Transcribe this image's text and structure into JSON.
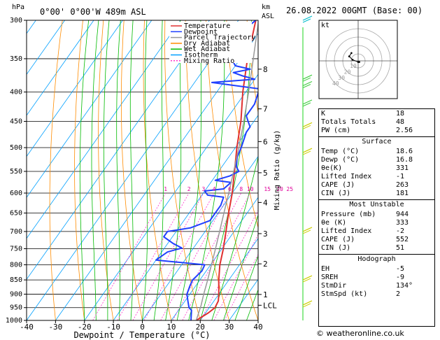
{
  "header": {
    "location": "0°00'  0°00'W  489m  ASL",
    "hpa_unit": "hPa",
    "km_unit": "km",
    "asl_unit": "ASL",
    "datetime": "26.08.2022  00GMT  (Base: 00)"
  },
  "axes": {
    "xlabel": "Dewpoint / Temperature (°C)",
    "mixing_label": "Mixing Ratio (g/kg)",
    "x_ticks": [
      -40,
      -30,
      -20,
      -10,
      0,
      10,
      20,
      30,
      40
    ],
    "p_ticks": [
      300,
      350,
      400,
      450,
      500,
      550,
      600,
      650,
      700,
      750,
      800,
      850,
      900,
      950,
      1000
    ],
    "km_ticks": [
      {
        "label": "8",
        "p": 365
      },
      {
        "label": "7",
        "p": 428
      },
      {
        "label": "6",
        "p": 488
      },
      {
        "label": "5",
        "p": 553
      },
      {
        "label": "4",
        "p": 623
      },
      {
        "label": "3",
        "p": 706
      },
      {
        "label": "2",
        "p": 797
      },
      {
        "label": "1",
        "p": 901
      },
      {
        "label": "LCL",
        "p": 941
      }
    ],
    "mixing_ratio_labels": [
      "1",
      "2",
      "3",
      "4",
      "6",
      "8",
      "10",
      "15",
      "20",
      "25"
    ]
  },
  "legend": [
    {
      "name": "Temperature",
      "color": "#e03030"
    },
    {
      "name": "Dewpoint",
      "color": "#2040ff"
    },
    {
      "name": "Parcel Trajectory",
      "color": "#999999"
    },
    {
      "name": "Dry Adiabat",
      "color": "#ff8c00"
    },
    {
      "name": "Wet Adiabat",
      "color": "#00bb00"
    },
    {
      "name": "Isotherm",
      "color": "#00a0ff"
    },
    {
      "name": "Mixing Ratio",
      "color": "#ff33cc"
    }
  ],
  "chart_data": {
    "type": "line",
    "series": [
      {
        "name": "Temperature",
        "color": "#e03030",
        "points": [
          [
            1000,
            18.6
          ],
          [
            970,
            21
          ],
          [
            950,
            22
          ],
          [
            925,
            21.5
          ],
          [
            900,
            20
          ],
          [
            850,
            16.5
          ],
          [
            800,
            13.2
          ],
          [
            750,
            10.5
          ],
          [
            700,
            7.2
          ],
          [
            650,
            3.6
          ],
          [
            600,
            0
          ],
          [
            550,
            -4.5
          ],
          [
            500,
            -9.5
          ],
          [
            450,
            -14.5
          ],
          [
            400,
            -21
          ],
          [
            350,
            -27.5
          ],
          [
            300,
            -34
          ]
        ]
      },
      {
        "name": "Dewpoint",
        "color": "#2040ff",
        "points": [
          [
            1000,
            16.8
          ],
          [
            960,
            14.5
          ],
          [
            950,
            13
          ],
          [
            925,
            11
          ],
          [
            900,
            9
          ],
          [
            870,
            8
          ],
          [
            850,
            7.5
          ],
          [
            820,
            8.5
          ],
          [
            800,
            8
          ],
          [
            785,
            -10
          ],
          [
            760,
            -8
          ],
          [
            748,
            -4
          ],
          [
            735,
            -8
          ],
          [
            715,
            -13
          ],
          [
            700,
            -13
          ],
          [
            690,
            -6
          ],
          [
            670,
            -1
          ],
          [
            650,
            -1
          ],
          [
            630,
            -1
          ],
          [
            610,
            -2
          ],
          [
            605,
            -8
          ],
          [
            595,
            -10
          ],
          [
            590,
            -4
          ],
          [
            575,
            -3
          ],
          [
            570,
            -9
          ],
          [
            560,
            -5
          ],
          [
            550,
            -3
          ],
          [
            540,
            -5
          ],
          [
            520,
            -7
          ],
          [
            500,
            -8
          ],
          [
            470,
            -10
          ],
          [
            460,
            -10
          ],
          [
            450,
            -12
          ],
          [
            440,
            -14
          ],
          [
            420,
            -14
          ],
          [
            395,
            -16
          ],
          [
            385,
            -34
          ],
          [
            380,
            -20
          ],
          [
            375,
            -25
          ],
          [
            370,
            -29
          ],
          [
            365,
            -24
          ],
          [
            360,
            -30
          ],
          [
            350,
            -33
          ],
          [
            340,
            -38
          ],
          [
            320,
            -37
          ],
          [
            300,
            -34
          ]
        ]
      },
      {
        "name": "Parcel Trajectory",
        "color": "#999999",
        "points": [
          [
            1000,
            18.6
          ],
          [
            941,
            16.6
          ],
          [
            900,
            14.8
          ],
          [
            850,
            12.7
          ],
          [
            800,
            10.3
          ],
          [
            750,
            7.8
          ],
          [
            700,
            5
          ],
          [
            650,
            2
          ],
          [
            600,
            -1.2
          ],
          [
            550,
            -4.8
          ],
          [
            500,
            -8.8
          ],
          [
            450,
            -13.5
          ],
          [
            400,
            -19
          ],
          [
            350,
            -25.5
          ],
          [
            300,
            -33
          ]
        ]
      }
    ],
    "xlim": [
      -40,
      40
    ],
    "plim": [
      300,
      1000
    ],
    "skew_c_per_decade": 140
  },
  "wind_barbs_p": [
    300,
    380,
    390,
    420,
    460,
    510,
    700,
    850,
    940
  ],
  "hodograph": {
    "label": "kt",
    "rings": [
      "10",
      "20",
      "30",
      "40"
    ],
    "points": [
      [
        1,
        -1
      ],
      [
        0,
        -1
      ],
      [
        -5,
        1
      ],
      [
        -8,
        4
      ],
      [
        -6,
        7
      ]
    ]
  },
  "indices": {
    "top": [
      {
        "label": "K",
        "value": "18"
      },
      {
        "label": "Totals Totals",
        "value": "48"
      },
      {
        "label": "PW (cm)",
        "value": "2.56"
      }
    ],
    "surface": {
      "title": "Surface",
      "rows": [
        {
          "label": "Temp (°C)",
          "value": "18.6"
        },
        {
          "label": "Dewp (°C)",
          "value": "16.8"
        },
        {
          "label": "θe(K)",
          "value": "331"
        },
        {
          "label": "Lifted Index",
          "value": "-1"
        },
        {
          "label": "CAPE (J)",
          "value": "263"
        },
        {
          "label": "CIN (J)",
          "value": "181"
        }
      ]
    },
    "most_unstable": {
      "title": "Most Unstable",
      "rows": [
        {
          "label": "Pressure (mb)",
          "value": "944"
        },
        {
          "label": "θe (K)",
          "value": "333"
        },
        {
          "label": "Lifted Index",
          "value": "-2"
        },
        {
          "label": "CAPE (J)",
          "value": "552"
        },
        {
          "label": "CIN (J)",
          "value": "51"
        }
      ]
    },
    "hodograph": {
      "title": "Hodograph",
      "rows": [
        {
          "label": "EH",
          "value": "-5"
        },
        {
          "label": "SREH",
          "value": "-9"
        },
        {
          "label": "StmDir",
          "value": "134°"
        },
        {
          "label": "StmSpd (kt)",
          "value": "2"
        }
      ]
    }
  },
  "footer": "© weatheronline.co.uk"
}
